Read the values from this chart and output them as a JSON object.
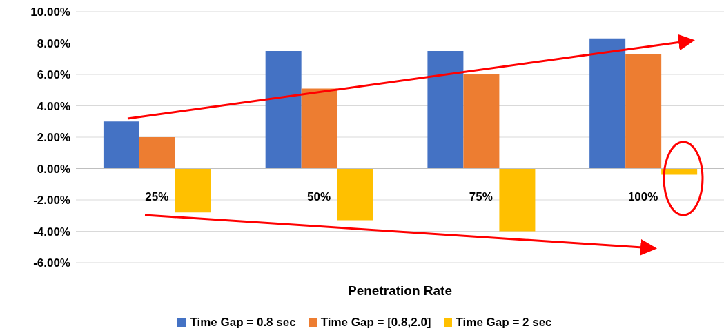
{
  "chart_data": {
    "type": "bar",
    "categories": [
      "25%",
      "50%",
      "75%",
      "100%"
    ],
    "xlabel": "Penetration Rate",
    "series": [
      {
        "name": "Time Gap = 0.8 sec",
        "color": "#4472c4",
        "values": [
          3.0,
          7.5,
          7.5,
          8.3
        ]
      },
      {
        "name": "Time Gap = [0.8,2.0]",
        "color": "#ed7d31",
        "values": [
          2.0,
          5.1,
          6.0,
          7.3
        ]
      },
      {
        "name": "Time Gap = 2 sec",
        "color": "#ffc000",
        "values": [
          -2.8,
          -3.3,
          -4.0,
          -0.4
        ]
      }
    ],
    "ylim": [
      -6,
      10
    ],
    "yticks": [
      {
        "value": -6,
        "label": "-6.00%"
      },
      {
        "value": -4,
        "label": "-4.00%"
      },
      {
        "value": -2,
        "label": "-2.00%"
      },
      {
        "value": 0,
        "label": "0.00%"
      },
      {
        "value": 2,
        "label": "2.00%"
      },
      {
        "value": 4,
        "label": "4.00%"
      },
      {
        "value": 6,
        "label": "6.00%"
      },
      {
        "value": 8,
        "label": "8.00%"
      },
      {
        "value": 10,
        "label": "10.00%"
      }
    ],
    "grid": "y",
    "legend": "bottom"
  }
}
